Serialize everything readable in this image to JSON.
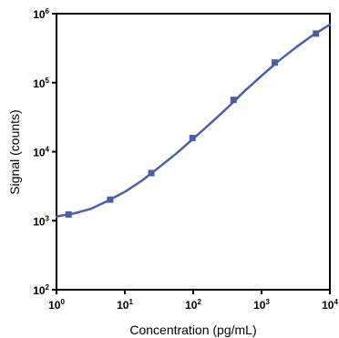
{
  "chart_data": {
    "type": "scatter",
    "title": "",
    "xlabel": "Concentration (pg/mL)",
    "ylabel": "Signal (counts)",
    "x_scale": "log",
    "y_scale": "log",
    "xlim": [
      1,
      10000
    ],
    "ylim": [
      100,
      1000000
    ],
    "grid": false,
    "x_ticks": [
      {
        "base": "10",
        "exp": "0",
        "value": 1
      },
      {
        "base": "10",
        "exp": "1",
        "value": 10
      },
      {
        "base": "10",
        "exp": "2",
        "value": 100
      },
      {
        "base": "10",
        "exp": "3",
        "value": 1000
      },
      {
        "base": "10",
        "exp": "4",
        "value": 10000
      }
    ],
    "y_ticks": [
      {
        "base": "10",
        "exp": "2",
        "value": 100
      },
      {
        "base": "10",
        "exp": "3",
        "value": 1000
      },
      {
        "base": "10",
        "exp": "4",
        "value": 10000
      },
      {
        "base": "10",
        "exp": "5",
        "value": 100000
      },
      {
        "base": "10",
        "exp": "6",
        "value": 1000000
      }
    ],
    "series": [
      {
        "color": "#4a5fa8",
        "marker": "square",
        "points": [
          {
            "x": 1.5,
            "y": 1230
          },
          {
            "x": 6.1,
            "y": 2020
          },
          {
            "x": 24.4,
            "y": 4900
          },
          {
            "x": 97.7,
            "y": 15800
          },
          {
            "x": 390,
            "y": 56300
          },
          {
            "x": 1560,
            "y": 196000
          },
          {
            "x": 6250,
            "y": 514000
          }
        ],
        "fit_curve": [
          {
            "x": 1,
            "y": 1150
          },
          {
            "x": 1.78,
            "y": 1270
          },
          {
            "x": 3.16,
            "y": 1480
          },
          {
            "x": 5.62,
            "y": 1940
          },
          {
            "x": 10,
            "y": 2620
          },
          {
            "x": 17.8,
            "y": 3810
          },
          {
            "x": 31.6,
            "y": 5930
          },
          {
            "x": 56.2,
            "y": 9360
          },
          {
            "x": 100,
            "y": 15400
          },
          {
            "x": 178,
            "y": 25600
          },
          {
            "x": 316,
            "y": 43200
          },
          {
            "x": 562,
            "y": 75300
          },
          {
            "x": 1000,
            "y": 126000
          },
          {
            "x": 1780,
            "y": 207000
          },
          {
            "x": 3160,
            "y": 323000
          },
          {
            "x": 5620,
            "y": 487000
          },
          {
            "x": 10000,
            "y": 695000
          }
        ]
      }
    ]
  }
}
